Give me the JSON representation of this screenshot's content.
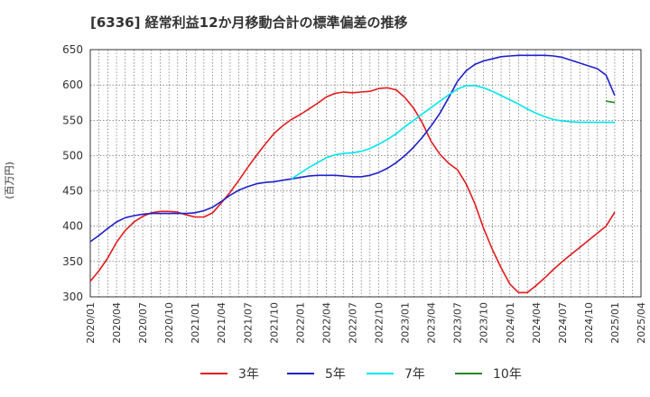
{
  "chart_data": {
    "type": "line",
    "title": "[6336]  経常利益12か月移動合計の標準偏差の推移",
    "ylabel": "(百万円)",
    "xlabel": "",
    "ylim": [
      300,
      650
    ],
    "yticks": [
      "300",
      "350",
      "400",
      "450",
      "500",
      "550",
      "600",
      "650"
    ],
    "xticks": [
      "2020/01",
      "2020/04",
      "2020/07",
      "2020/10",
      "2021/01",
      "2021/04",
      "2021/07",
      "2021/10",
      "2022/01",
      "2022/04",
      "2022/07",
      "2022/10",
      "2023/01",
      "2023/04",
      "2023/07",
      "2023/10",
      "2024/01",
      "2024/04",
      "2024/07",
      "2024/10",
      "2025/01",
      "2025/04"
    ],
    "grid": true,
    "legend_position": "bottom",
    "series": [
      {
        "name": "3年",
        "color": "#e31a1c",
        "x": [
          "2020/01",
          "2020/02",
          "2020/03",
          "2020/04",
          "2020/05",
          "2020/06",
          "2020/07",
          "2020/08",
          "2020/09",
          "2020/10",
          "2020/11",
          "2020/12",
          "2021/01",
          "2021/02",
          "2021/03",
          "2021/04",
          "2021/05",
          "2021/06",
          "2021/07",
          "2021/08",
          "2021/09",
          "2021/10",
          "2021/11",
          "2021/12",
          "2022/01",
          "2022/02",
          "2022/03",
          "2022/04",
          "2022/05",
          "2022/06",
          "2022/07",
          "2022/08",
          "2022/09",
          "2022/10",
          "2022/11",
          "2022/12",
          "2023/01",
          "2023/02",
          "2023/03",
          "2023/04",
          "2023/05",
          "2023/06",
          "2023/07",
          "2023/08",
          "2023/09",
          "2023/10",
          "2023/11",
          "2023/12",
          "2024/01",
          "2024/02",
          "2024/03",
          "2024/04",
          "2024/05",
          "2024/06",
          "2024/07",
          "2024/08",
          "2024/09",
          "2024/10",
          "2024/11",
          "2024/12",
          "2025/01"
        ],
        "values": [
          322,
          337,
          355,
          377,
          394,
          406,
          414,
          419,
          421,
          421,
          420,
          416,
          413,
          413,
          419,
          433,
          448,
          465,
          483,
          500,
          516,
          531,
          542,
          551,
          558,
          566,
          574,
          583,
          588,
          590,
          589,
          590,
          591,
          595,
          596,
          593,
          582,
          567,
          546,
          520,
          502,
          489,
          480,
          460,
          432,
          397,
          367,
          341,
          318,
          306,
          306,
          316,
          327,
          339,
          350,
          360,
          370,
          380,
          390,
          400,
          420
        ]
      },
      {
        "name": "5年",
        "color": "#1f1fcc",
        "x": [
          "2020/01",
          "2020/02",
          "2020/03",
          "2020/04",
          "2020/05",
          "2020/06",
          "2020/07",
          "2020/08",
          "2020/09",
          "2020/10",
          "2020/11",
          "2020/12",
          "2021/01",
          "2021/02",
          "2021/03",
          "2021/04",
          "2021/05",
          "2021/06",
          "2021/07",
          "2021/08",
          "2021/09",
          "2021/10",
          "2021/11",
          "2021/12",
          "2022/01",
          "2022/02",
          "2022/03",
          "2022/04",
          "2022/05",
          "2022/06",
          "2022/07",
          "2022/08",
          "2022/09",
          "2022/10",
          "2022/11",
          "2022/12",
          "2023/01",
          "2023/02",
          "2023/03",
          "2023/04",
          "2023/05",
          "2023/06",
          "2023/07",
          "2023/08",
          "2023/09",
          "2023/10",
          "2023/11",
          "2023/12",
          "2024/01",
          "2024/02",
          "2024/03",
          "2024/04",
          "2024/05",
          "2024/06",
          "2024/07",
          "2024/08",
          "2024/09",
          "2024/10",
          "2024/11",
          "2024/12",
          "2025/01"
        ],
        "values": [
          378,
          387,
          397,
          406,
          412,
          415,
          417,
          418,
          418,
          418,
          418,
          418,
          419,
          422,
          427,
          435,
          444,
          451,
          456,
          460,
          462,
          463,
          465,
          467,
          469,
          471,
          472,
          472,
          472,
          471,
          470,
          470,
          472,
          476,
          482,
          490,
          500,
          512,
          526,
          542,
          560,
          582,
          605,
          620,
          629,
          634,
          637,
          640,
          641,
          642,
          642,
          642,
          642,
          641,
          639,
          635,
          631,
          627,
          623,
          614,
          585
        ]
      },
      {
        "name": "7年",
        "color": "#00e5ee",
        "x": [
          "2021/12",
          "2022/01",
          "2022/02",
          "2022/03",
          "2022/04",
          "2022/05",
          "2022/06",
          "2022/07",
          "2022/08",
          "2022/09",
          "2022/10",
          "2022/11",
          "2022/12",
          "2023/01",
          "2023/02",
          "2023/03",
          "2023/04",
          "2023/05",
          "2023/06",
          "2023/07",
          "2023/08",
          "2023/09",
          "2023/10",
          "2023/11",
          "2023/12",
          "2024/01",
          "2024/02",
          "2024/03",
          "2024/04",
          "2024/05",
          "2024/06",
          "2024/07",
          "2024/08",
          "2024/09",
          "2024/10",
          "2024/11",
          "2024/12",
          "2025/01"
        ],
        "values": [
          467,
          475,
          483,
          490,
          497,
          501,
          503,
          504,
          506,
          510,
          516,
          523,
          531,
          541,
          550,
          559,
          568,
          577,
          586,
          594,
          599,
          599,
          596,
          591,
          585,
          579,
          573,
          566,
          560,
          555,
          551,
          549,
          548,
          547,
          547,
          547,
          547,
          547
        ]
      },
      {
        "name": "10年",
        "color": "#228b22",
        "x": [
          "2024/12",
          "2025/01"
        ],
        "values": [
          577,
          575
        ]
      }
    ]
  }
}
